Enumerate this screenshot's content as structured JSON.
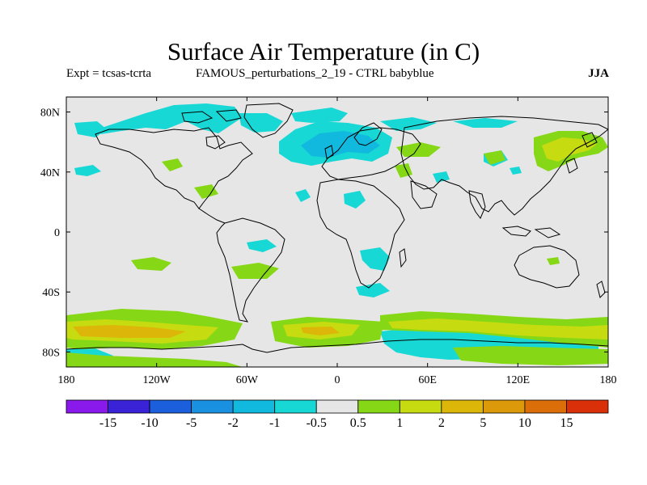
{
  "title": "Surface Air Temperature (in C)",
  "subtitle_left": "Expt = tcsas-tcrta",
  "subtitle_center": "FAMOUS_perturbations_2_19 - CTRL babyblue",
  "subtitle_right": "JJA",
  "map": {
    "lon_ticks": [
      "180",
      "120W",
      "60W",
      "0",
      "60E",
      "120E",
      "180"
    ],
    "lat_ticks": [
      "80N",
      "40N",
      "0",
      "40S",
      "80S"
    ],
    "background_color": "#e6e6e6",
    "coastline_color": "#000000"
  },
  "colorbar": {
    "colors": [
      "#8a1aec",
      "#3a22d6",
      "#1c5fdc",
      "#1a91e0",
      "#12b9de",
      "#18d8d6",
      "#e6e6e6",
      "#86d816",
      "#c6dc10",
      "#dcb70a",
      "#dc9a0a",
      "#dc6e0a",
      "#da300a"
    ],
    "labels": [
      "-15",
      "-10",
      "-5",
      "-2",
      "-1",
      "-0.5",
      "0.5",
      "1",
      "2",
      "5",
      "10",
      "15"
    ]
  }
}
